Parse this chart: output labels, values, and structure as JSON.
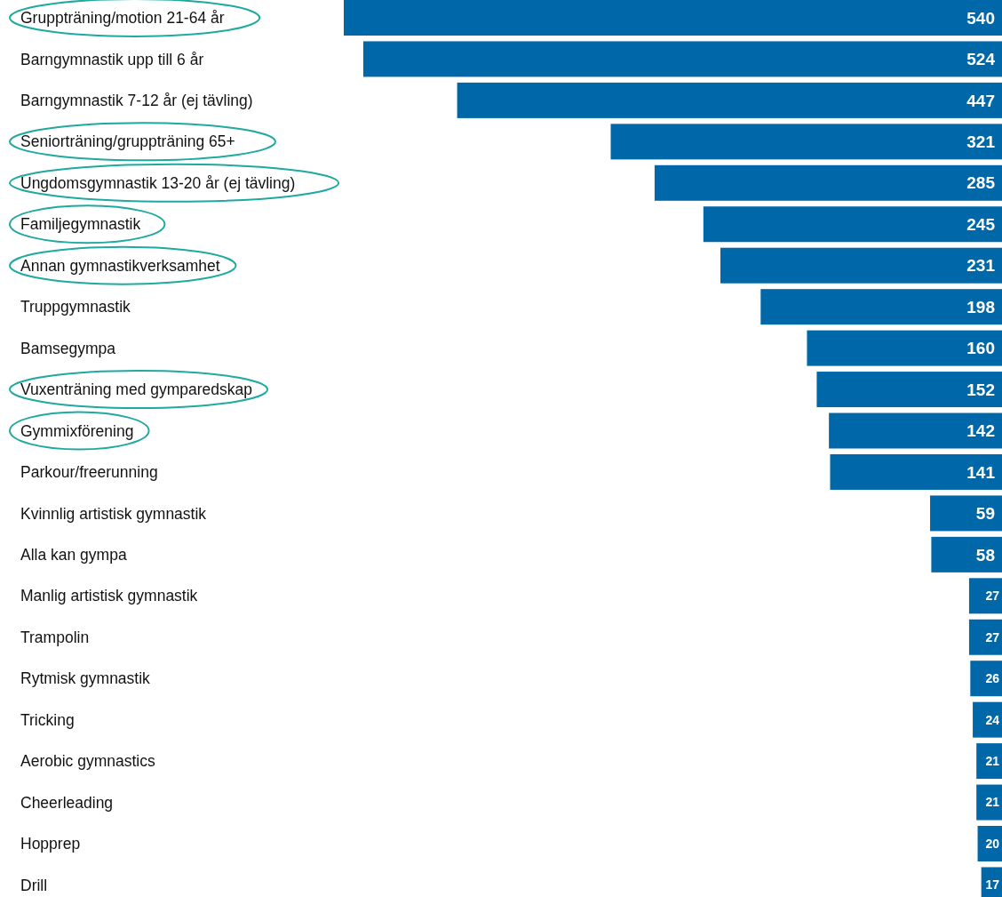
{
  "chart_data": {
    "type": "bar",
    "orientation": "horizontal",
    "data_labels": true,
    "color": "#0068a8",
    "categories": [
      "Gruppträning/motion 21-64 år",
      "Barngymnastik upp till 6 år",
      "Barngymnastik 7-12 år (ej tävling)",
      "Seniorträning/gruppträning 65+",
      "Ungdomsgymnastik 13-20 år (ej tävling)",
      "Familjegymnastik",
      "Annan gymnastikverksamhet",
      "Truppgymnastik",
      "Bamsegympa",
      "Vuxenträning med gymparedskap",
      "Gymmixförening",
      "Parkour/freerunning",
      "Kvinnlig artistisk gymnastik",
      "Alla kan gympa",
      "Manlig artistisk gymnastik",
      "Trampolin",
      "Rytmisk gymnastik",
      "Tricking",
      "Aerobic gymnastics",
      "Cheerleading",
      "Hopprep",
      "Drill"
    ],
    "values": [
      540,
      524,
      447,
      321,
      285,
      245,
      231,
      198,
      160,
      152,
      142,
      141,
      59,
      58,
      27,
      27,
      26,
      24,
      21,
      21,
      20,
      17
    ]
  }
}
